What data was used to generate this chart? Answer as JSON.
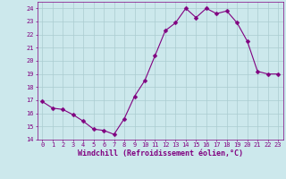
{
  "x": [
    0,
    1,
    2,
    3,
    4,
    5,
    6,
    7,
    8,
    9,
    10,
    11,
    12,
    13,
    14,
    15,
    16,
    17,
    18,
    19,
    20,
    21,
    22,
    23
  ],
  "y": [
    16.9,
    16.4,
    16.3,
    15.9,
    15.4,
    14.8,
    14.7,
    14.4,
    15.6,
    17.3,
    18.5,
    20.4,
    22.3,
    22.9,
    24.0,
    23.3,
    24.0,
    23.6,
    23.8,
    22.9,
    21.5,
    19.2,
    19.0,
    19.0
  ],
  "line_color": "#800080",
  "marker": "D",
  "marker_size": 2.5,
  "bg_color": "#cce8ec",
  "grid_color": "#aaccd0",
  "xlabel": "Windchill (Refroidissement éolien,°C)",
  "ylim": [
    14,
    24.5
  ],
  "xlim": [
    -0.5,
    23.5
  ],
  "yticks": [
    14,
    15,
    16,
    17,
    18,
    19,
    20,
    21,
    22,
    23,
    24
  ],
  "xticks": [
    0,
    1,
    2,
    3,
    4,
    5,
    6,
    7,
    8,
    9,
    10,
    11,
    12,
    13,
    14,
    15,
    16,
    17,
    18,
    19,
    20,
    21,
    22,
    23
  ],
  "tick_color": "#800080",
  "tick_fontsize": 5.0,
  "xlabel_fontsize": 6.0
}
